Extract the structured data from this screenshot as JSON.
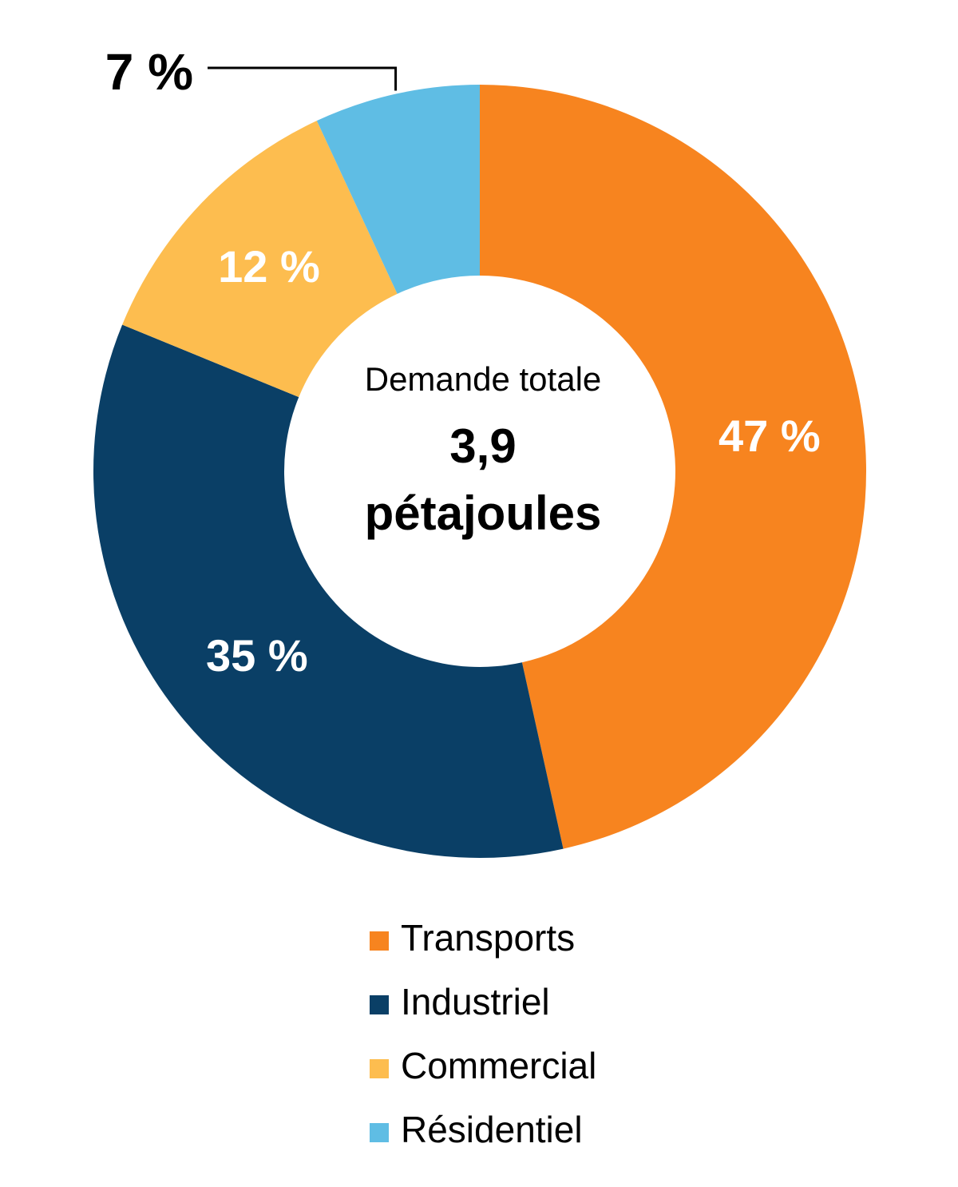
{
  "chart_data": {
    "type": "donut",
    "categories": [
      "Transports",
      "Industriel",
      "Commercial",
      "Résidentiel"
    ],
    "values": [
      47,
      35,
      12,
      7
    ],
    "value_labels": [
      "47 %",
      "35 %",
      "12 %",
      "7 %"
    ],
    "colors": [
      "#f7841f",
      "#0a3f66",
      "#fdbd4f",
      "#5fbde4"
    ],
    "center_title": "Demande totale",
    "center_value": "3,9",
    "center_unit": "pétajoules",
    "legend": "bottom"
  }
}
